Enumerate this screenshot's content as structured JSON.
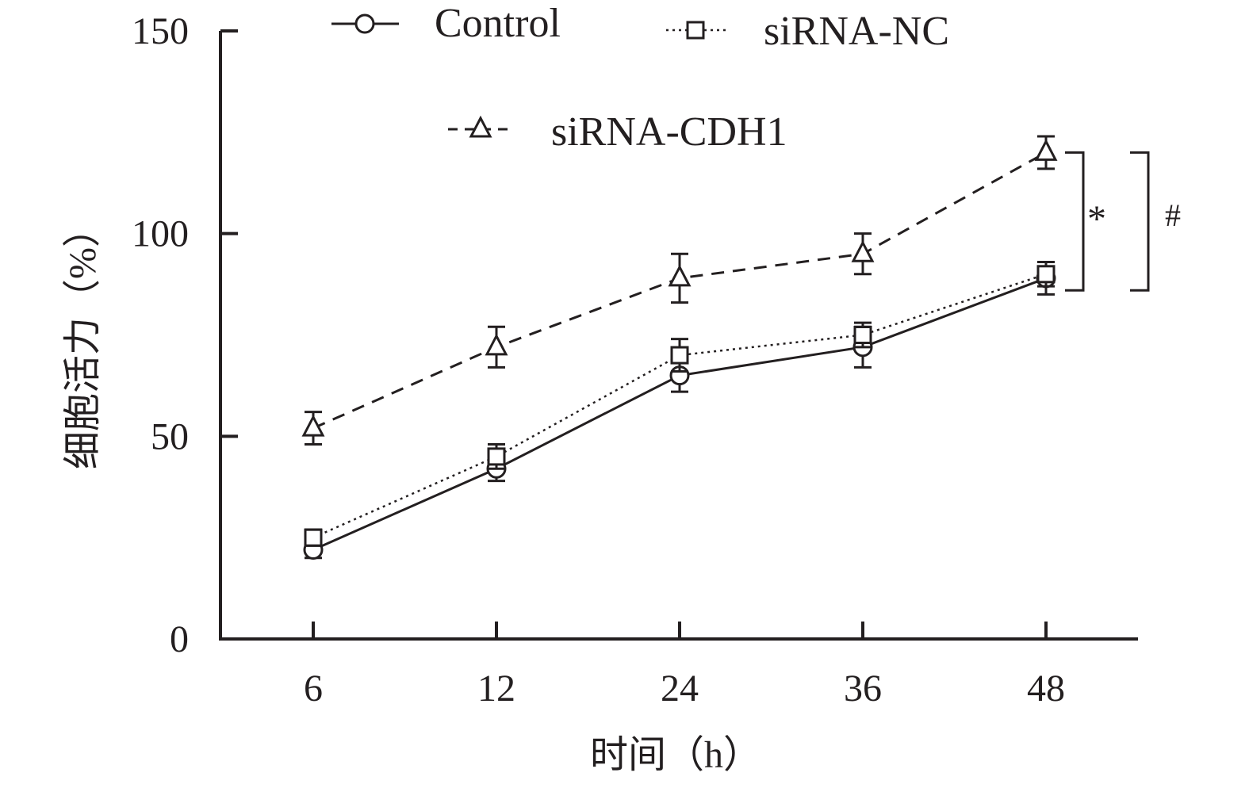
{
  "chart_data": {
    "type": "line",
    "xlabel": "时间（h）",
    "ylabel": "细胞活力（%）",
    "categories": [
      "6",
      "12",
      "24",
      "36",
      "48"
    ],
    "ylim": [
      0,
      150
    ],
    "yticks": [
      0,
      50,
      100,
      150
    ],
    "legend_position": "top",
    "series": [
      {
        "name": "Control",
        "marker": "circle",
        "line_style": "solid",
        "values": [
          22,
          42,
          65,
          72,
          89
        ],
        "errors": [
          2,
          3,
          4,
          5,
          4
        ]
      },
      {
        "name": "siRNA-NC",
        "marker": "square",
        "line_style": "dotted",
        "values": [
          25,
          45,
          70,
          75,
          90
        ],
        "errors": [
          2,
          3,
          4,
          3,
          3
        ]
      },
      {
        "name": "siRNA-CDH1",
        "marker": "triangle",
        "line_style": "dashed",
        "values": [
          52,
          72,
          89,
          95,
          120
        ],
        "errors": [
          4,
          5,
          6,
          5,
          4
        ]
      }
    ],
    "significance": [
      {
        "symbol": "*",
        "from": 120,
        "to": 86
      },
      {
        "symbol": "#",
        "from": 120,
        "to": 86
      }
    ]
  },
  "colors": {
    "ink": "#231f20",
    "background": "#ffffff"
  }
}
